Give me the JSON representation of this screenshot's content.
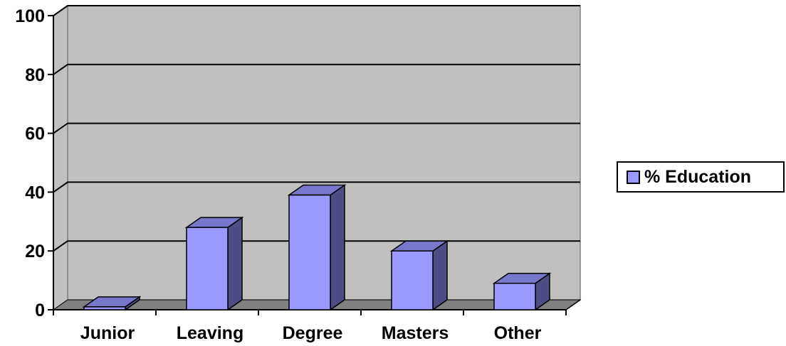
{
  "chart_data": {
    "type": "bar",
    "categories": [
      "Junior",
      "Leaving",
      "Degree",
      "Masters",
      "Other"
    ],
    "series": [
      {
        "name": "% Education",
        "values": [
          1,
          28,
          39,
          20,
          9
        ]
      }
    ],
    "ylim": [
      0,
      100
    ],
    "yticks": [
      "0",
      "20",
      "40",
      "60",
      "80",
      "100"
    ],
    "grid": true,
    "legend_position": "right",
    "colors": {
      "bar_front": "#9999ff",
      "bar_side": "#4d4d85",
      "bar_top": "#7777cc",
      "wall": "#c0c0c0",
      "floor": "#808080",
      "grid": "#000000"
    }
  }
}
